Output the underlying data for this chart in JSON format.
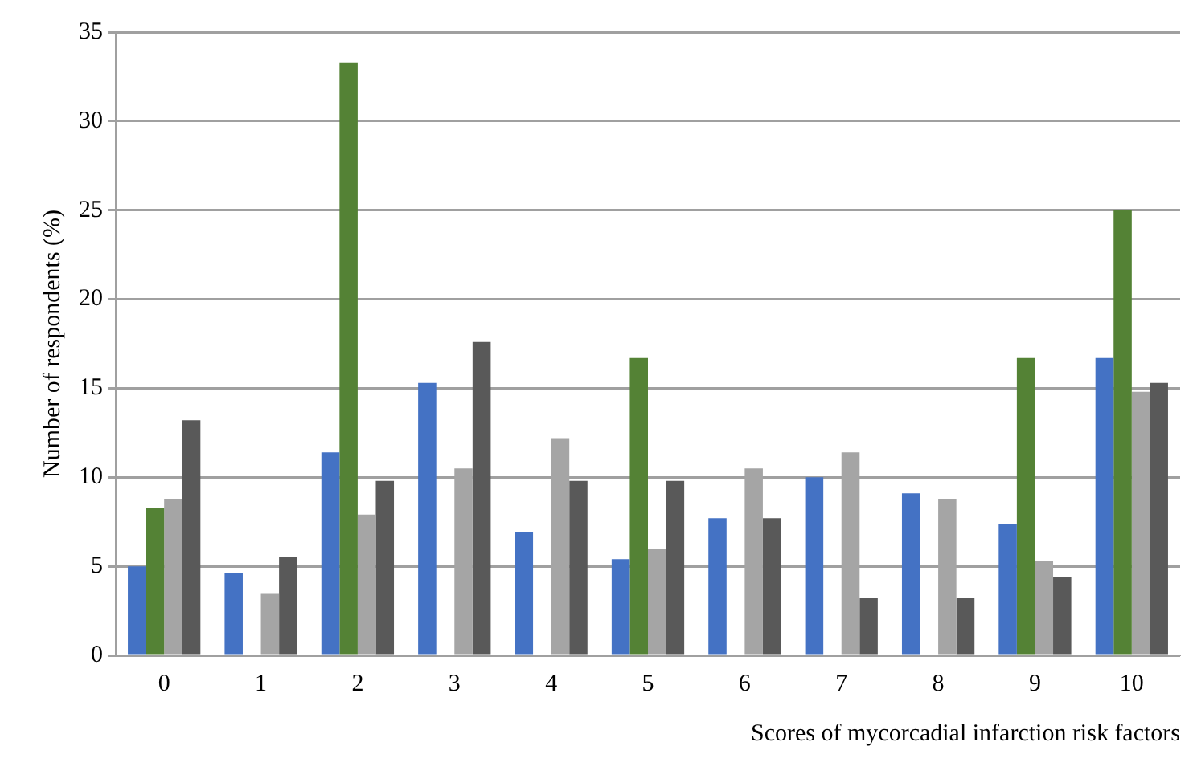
{
  "chart_data": {
    "type": "bar",
    "xlabel": "Scores of mycorcadial infarction risk factors",
    "ylabel": "Number of respondents (%)",
    "categories": [
      "0",
      "1",
      "2",
      "3",
      "4",
      "5",
      "6",
      "7",
      "8",
      "9",
      "10"
    ],
    "series": [
      {
        "color": "#4472c4",
        "values": [
          5.0,
          4.6,
          11.4,
          15.3,
          6.9,
          5.4,
          7.7,
          10.0,
          9.1,
          7.4,
          16.7
        ]
      },
      {
        "color": "#548235",
        "values": [
          8.3,
          null,
          33.3,
          null,
          null,
          16.7,
          null,
          null,
          null,
          16.7,
          25.0
        ]
      },
      {
        "color": "#a5a5a5",
        "values": [
          8.8,
          3.5,
          7.9,
          10.5,
          12.2,
          6.0,
          10.5,
          11.4,
          8.8,
          5.3,
          14.8
        ]
      },
      {
        "color": "#595959",
        "values": [
          13.2,
          5.5,
          9.8,
          17.6,
          9.8,
          9.8,
          7.7,
          3.2,
          3.2,
          4.4,
          15.3
        ]
      }
    ],
    "ylim": [
      0,
      35
    ],
    "yticks": [
      0,
      5,
      10,
      15,
      20,
      25,
      30,
      35
    ],
    "grid": "y",
    "legend": false
  }
}
